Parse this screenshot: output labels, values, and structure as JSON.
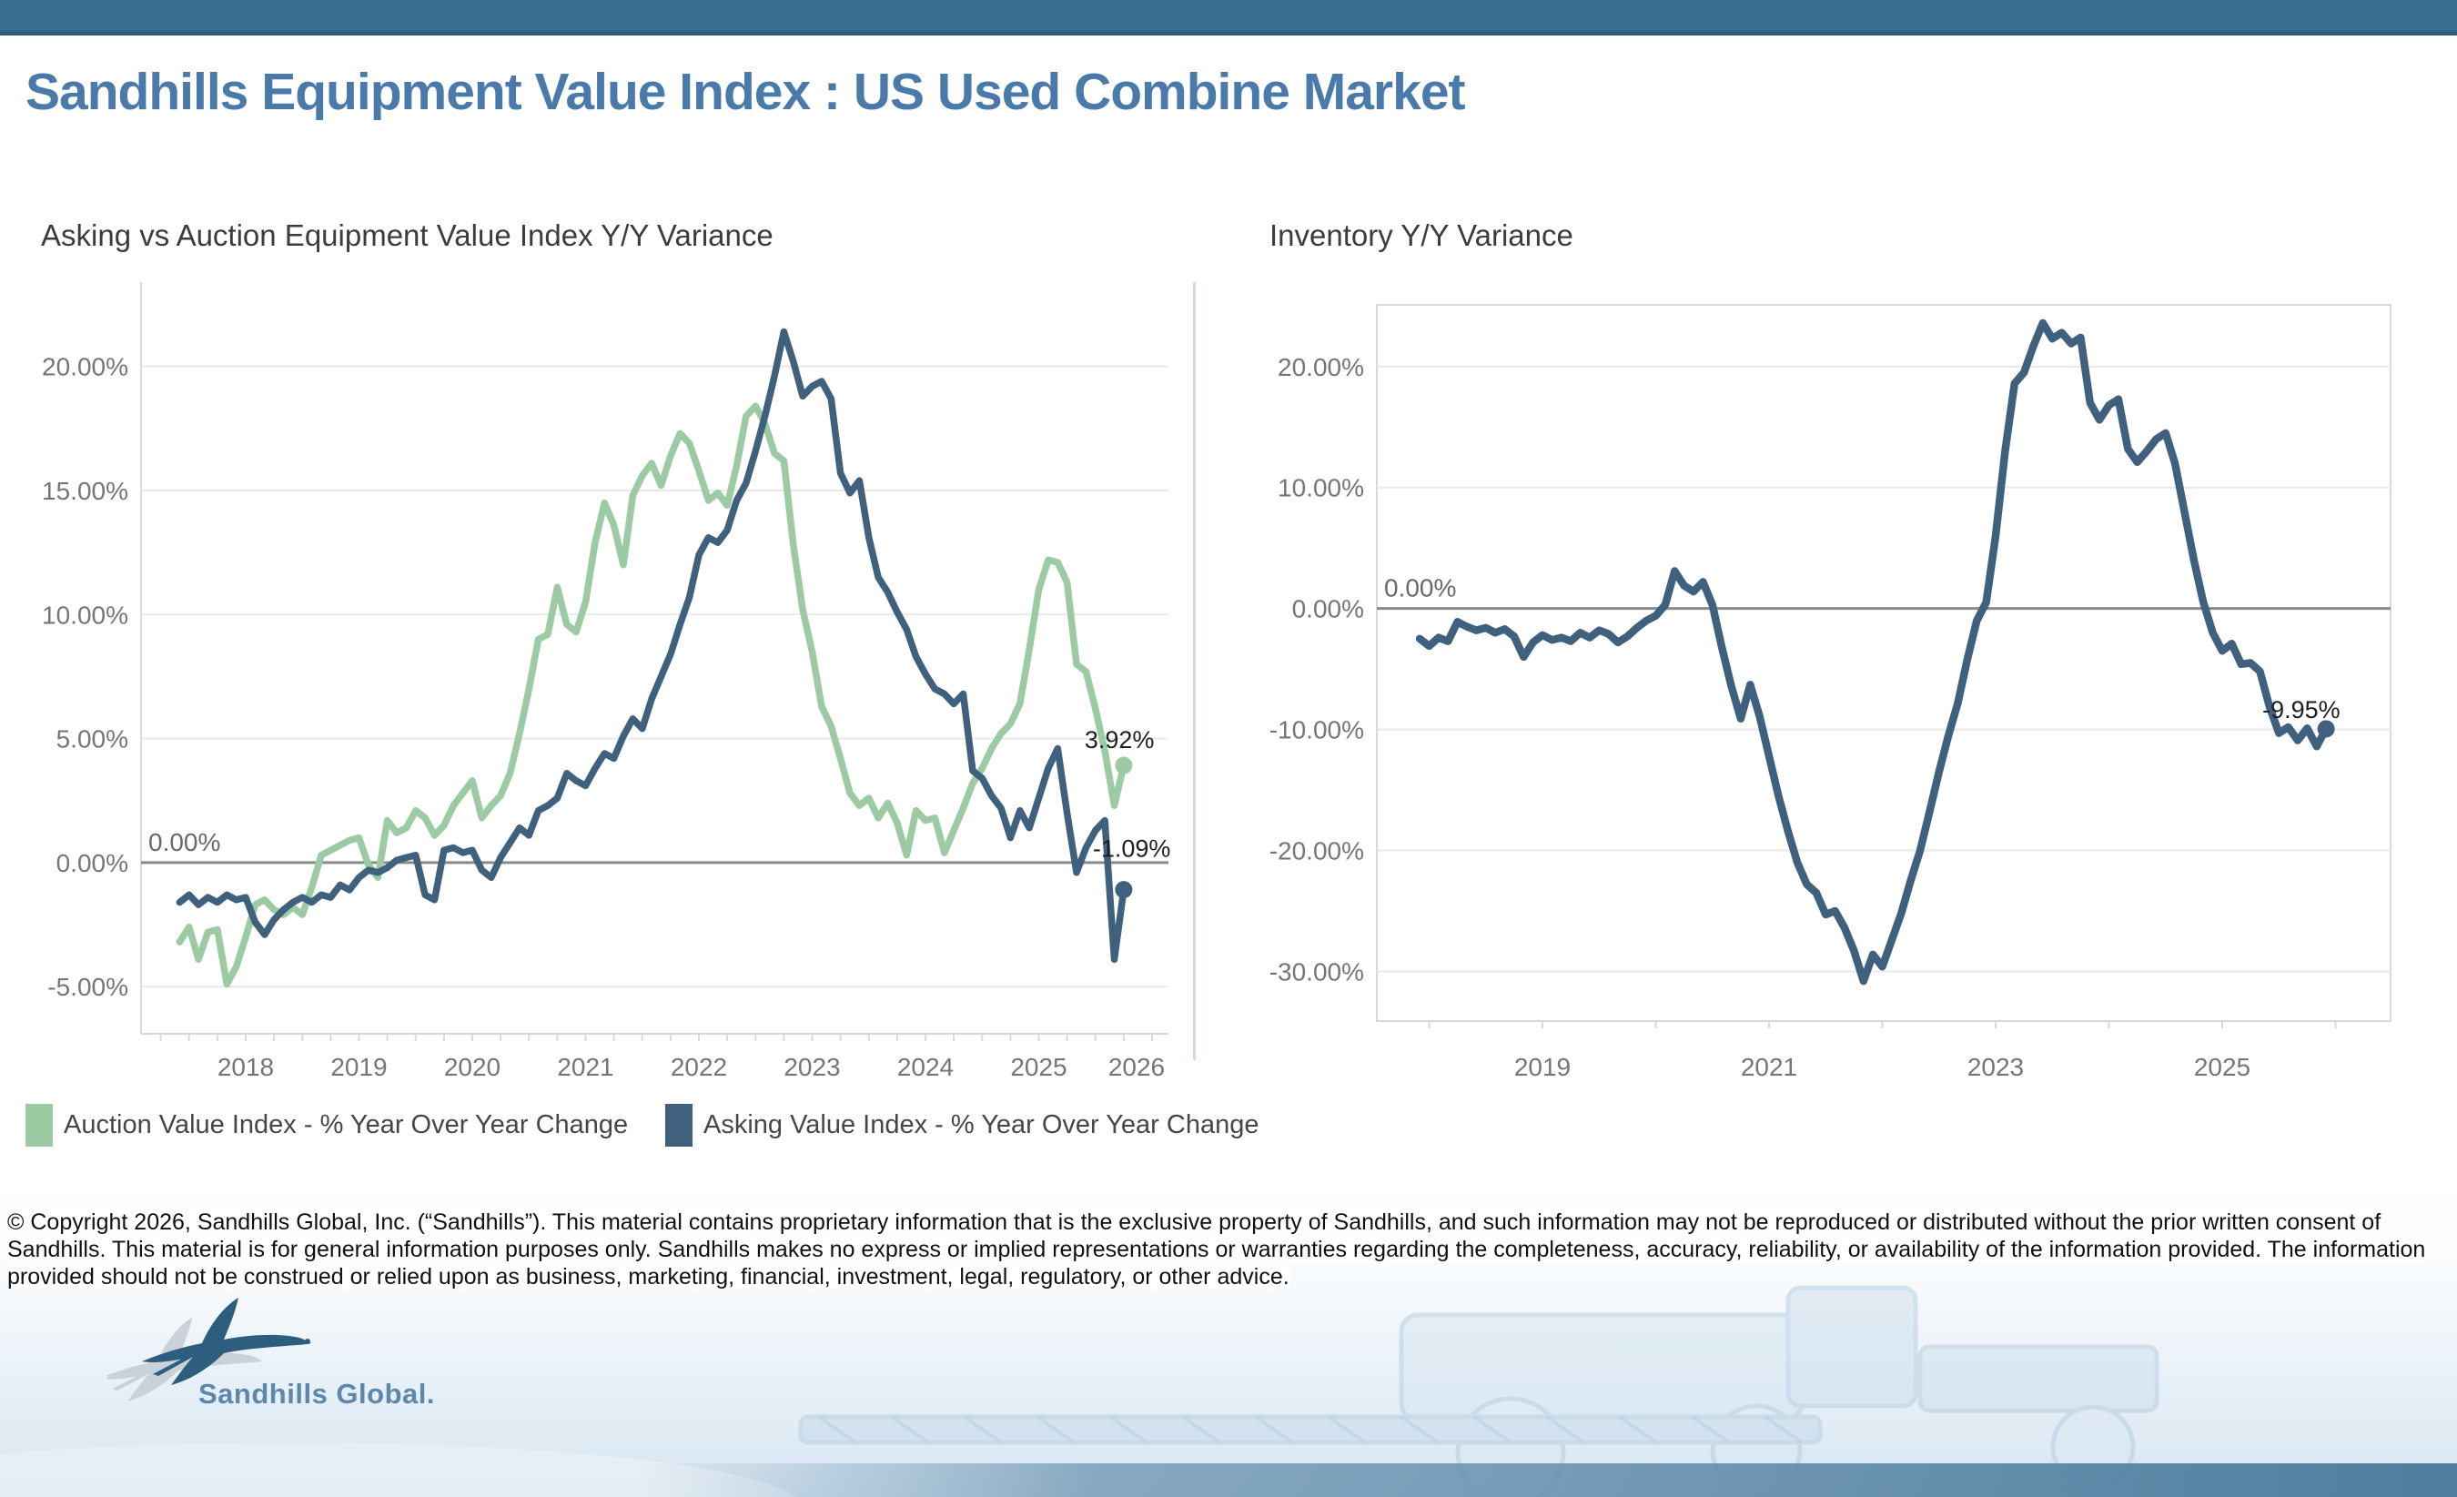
{
  "header": {
    "title": "Sandhills Equipment Value Index : US Used Combine Market",
    "title_color": "#4a7aaa",
    "topbar_color": "#3a6e8f"
  },
  "chart_data": [
    {
      "type": "line",
      "title": "Asking vs Auction Equipment Value Index Y/Y Variance",
      "xlabel": "",
      "ylabel": "",
      "x_ticks": [
        2018,
        2019,
        2020,
        2021,
        2022,
        2023,
        2024,
        2025,
        2026
      ],
      "y_ticks": [
        20,
        15,
        10,
        5,
        0,
        -5
      ],
      "ylim": [
        -6.9,
        23.4
      ],
      "xlim": [
        2017.05,
        2026.25
      ],
      "grid": "horizontal",
      "zero_line_label": "0.00%",
      "legend_position": "bottom-left",
      "series": [
        {
          "name": "Auction Value Index - % Year Over Year Change",
          "color": "#9ccaa3",
          "start_year": 2017.4167,
          "points_per_year": 12,
          "end_label": "3.92%",
          "values": [
            -3.2,
            -2.6,
            -3.9,
            -2.8,
            -2.7,
            -4.9,
            -4.2,
            -3.0,
            -1.7,
            -1.5,
            -1.9,
            -2.1,
            -1.8,
            -2.1,
            -1.0,
            0.3,
            0.5,
            0.7,
            0.9,
            1.0,
            -0.1,
            -0.6,
            1.7,
            1.2,
            1.4,
            2.1,
            1.8,
            1.1,
            1.5,
            2.3,
            2.8,
            3.3,
            1.8,
            2.3,
            2.7,
            3.6,
            5.2,
            7.0,
            9.0,
            9.2,
            11.1,
            9.6,
            9.3,
            10.5,
            12.9,
            14.5,
            13.6,
            12.0,
            14.8,
            15.6,
            16.1,
            15.2,
            16.4,
            17.3,
            16.9,
            15.8,
            14.6,
            14.9,
            14.4,
            16.0,
            18.0,
            18.4,
            17.7,
            16.5,
            16.2,
            12.8,
            10.2,
            8.5,
            6.3,
            5.5,
            4.2,
            2.8,
            2.3,
            2.6,
            1.8,
            2.4,
            1.6,
            0.3,
            2.1,
            1.7,
            1.8,
            0.4,
            1.3,
            2.2,
            3.2,
            3.8,
            4.6,
            5.2,
            5.6,
            6.4,
            8.6,
            11.0,
            12.2,
            12.1,
            11.3,
            8.0,
            7.7,
            6.2,
            4.5,
            2.3,
            3.92
          ]
        },
        {
          "name": "Asking Value Index - % Year Over Year Change",
          "color": "#3f617e",
          "start_year": 2017.4167,
          "points_per_year": 12,
          "end_label": "-1.09%",
          "values": [
            -1.6,
            -1.3,
            -1.7,
            -1.4,
            -1.6,
            -1.3,
            -1.5,
            -1.4,
            -2.4,
            -2.9,
            -2.3,
            -1.9,
            -1.6,
            -1.4,
            -1.6,
            -1.3,
            -1.4,
            -0.9,
            -1.1,
            -0.6,
            -0.3,
            -0.4,
            -0.2,
            0.1,
            0.2,
            0.3,
            -1.3,
            -1.5,
            0.5,
            0.6,
            0.4,
            0.5,
            -0.3,
            -0.6,
            0.2,
            0.8,
            1.4,
            1.1,
            2.1,
            2.3,
            2.6,
            3.6,
            3.3,
            3.1,
            3.8,
            4.4,
            4.2,
            5.1,
            5.8,
            5.4,
            6.6,
            7.5,
            8.4,
            9.6,
            10.7,
            12.4,
            13.1,
            12.9,
            13.4,
            14.6,
            15.3,
            16.6,
            18.0,
            19.6,
            21.4,
            20.2,
            18.8,
            19.2,
            19.4,
            18.7,
            15.7,
            14.9,
            15.4,
            13.1,
            11.5,
            10.9,
            10.1,
            9.4,
            8.3,
            7.6,
            7.0,
            6.8,
            6.4,
            6.8,
            3.7,
            3.4,
            2.7,
            2.2,
            1.0,
            2.1,
            1.4,
            2.6,
            3.8,
            4.6,
            2.0,
            -0.4,
            0.6,
            1.3,
            1.7,
            -3.9,
            -1.09
          ]
        }
      ]
    },
    {
      "type": "line",
      "title": "Inventory Y/Y Variance",
      "xlabel": "",
      "ylabel": "",
      "x_ticks": [
        2019,
        2021,
        2023,
        2025
      ],
      "y_ticks": [
        20,
        10,
        0,
        -10,
        -20,
        -30
      ],
      "ylim": [
        -34.1,
        25.1
      ],
      "xlim": [
        2017.54,
        2026.49
      ],
      "grid": "horizontal",
      "zero_line_label": "0.00%",
      "legend_position": "none",
      "series": [
        {
          "name": "Inventory Y/Y Variance",
          "color": "#3f617e",
          "start_year": 2017.9167,
          "points_per_year": 12,
          "end_label": "-9.95%",
          "values": [
            -2.5,
            -3.1,
            -2.4,
            -2.7,
            -1.1,
            -1.5,
            -1.8,
            -1.6,
            -2.0,
            -1.7,
            -2.3,
            -4.0,
            -2.8,
            -2.2,
            -2.6,
            -2.4,
            -2.7,
            -2.0,
            -2.4,
            -1.8,
            -2.1,
            -2.8,
            -2.3,
            -1.6,
            -1.0,
            -0.6,
            0.3,
            3.1,
            1.9,
            1.4,
            2.2,
            0.3,
            -3.2,
            -6.4,
            -9.1,
            -6.3,
            -8.9,
            -12.2,
            -15.5,
            -18.4,
            -21.0,
            -22.8,
            -23.5,
            -25.3,
            -25.0,
            -26.4,
            -28.3,
            -30.8,
            -28.6,
            -29.6,
            -27.4,
            -25.2,
            -22.5,
            -20.0,
            -16.8,
            -13.5,
            -10.5,
            -7.8,
            -4.2,
            -1.0,
            0.5,
            6.0,
            13.0,
            18.6,
            19.5,
            21.7,
            23.6,
            22.3,
            22.8,
            21.9,
            22.4,
            17.0,
            15.6,
            16.8,
            17.3,
            13.2,
            12.1,
            13.0,
            14.0,
            14.5,
            12.0,
            8.0,
            4.0,
            0.5,
            -2.0,
            -3.5,
            -2.9,
            -4.6,
            -4.5,
            -5.2,
            -8.1,
            -10.3,
            -9.8,
            -10.9,
            -9.9,
            -11.4,
            -9.95
          ]
        }
      ]
    }
  ],
  "legend": {
    "items": [
      {
        "label": "Auction Value Index - % Year Over Year Change",
        "color": "#9ccaa3"
      },
      {
        "label": "Asking Value Index - % Year Over Year Change",
        "color": "#3f617e"
      }
    ]
  },
  "footer": {
    "copyright": "© Copyright 2026, Sandhills Global, Inc. (“Sandhills”). This material contains proprietary information that is the exclusive property of Sandhills, and such information may not be reproduced or distributed without the prior written consent of Sandhills. This material is for general information purposes only. Sandhills makes no express or implied representations or warranties regarding the completeness, accuracy, reliability, or availability of the information provided. The information provided should not be construed or relied upon as business, marketing, financial, investment, legal, regulatory, or other advice.",
    "logo_text": "Sandhills Global.",
    "logo_color": "#5d87ab"
  },
  "style_colors": {
    "axis_label": "#767676",
    "gridline": "#e9e9e9",
    "zero_line": "#8a8a8a",
    "plot_border": "#d9d9d9",
    "chart_title": "#3c3c3c",
    "end_label": "#1f1f1f",
    "annotation": "#696969"
  }
}
